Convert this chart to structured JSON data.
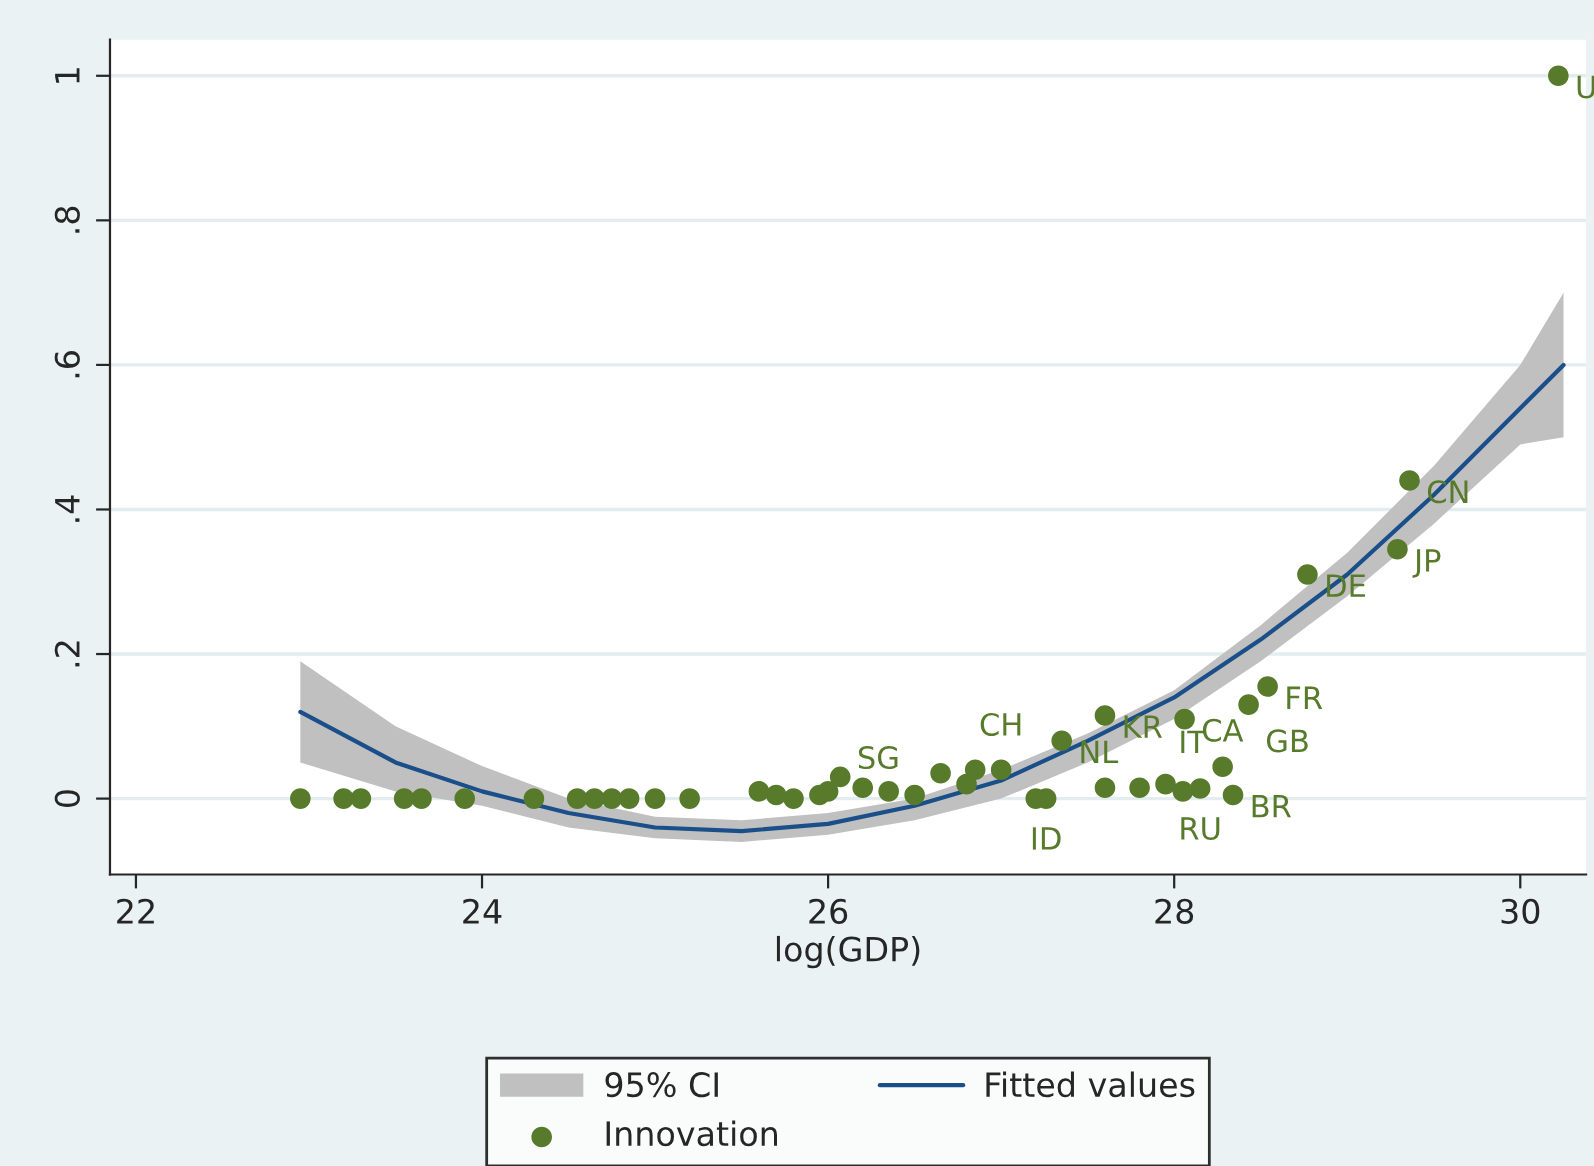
{
  "chart_data": {
    "type": "scatter",
    "xlabel": "log(GDP)",
    "xlim": [
      21.85,
      30.38
    ],
    "ylim": [
      -0.105,
      1.05
    ],
    "xticks": [
      22,
      24,
      26,
      28,
      30
    ],
    "yticks": [
      {
        "value": 0,
        "label": "0"
      },
      {
        "value": 0.2,
        "label": ".2"
      },
      {
        "value": 0.4,
        "label": ".4"
      },
      {
        "value": 0.6,
        "label": ".6"
      },
      {
        "value": 0.8,
        "label": ".8"
      },
      {
        "value": 1,
        "label": "1"
      }
    ],
    "grid": "y",
    "legend": "bottom",
    "series": [
      {
        "name": "Fitted values",
        "type": "line",
        "color": "#1a4f8a",
        "x": [
          22.95,
          23.5,
          24,
          24.5,
          25,
          25.5,
          26,
          26.5,
          27,
          27.5,
          28,
          28.5,
          29,
          29.5,
          30,
          30.25
        ],
        "values": [
          0.12,
          0.05,
          0.01,
          -0.02,
          -0.04,
          -0.045,
          -0.035,
          -0.01,
          0.025,
          0.08,
          0.14,
          0.22,
          0.31,
          0.42,
          0.54,
          0.6
        ],
        "lower": [
          0.05,
          0.01,
          -0.01,
          -0.04,
          -0.055,
          -0.06,
          -0.05,
          -0.03,
          0.0,
          0.05,
          0.11,
          0.19,
          0.28,
          0.38,
          0.49,
          0.5
        ],
        "upper": [
          0.19,
          0.1,
          0.045,
          0.0,
          -0.025,
          -0.03,
          -0.02,
          0.0,
          0.04,
          0.09,
          0.15,
          0.24,
          0.34,
          0.46,
          0.6,
          0.7
        ]
      },
      {
        "name": "Innovation",
        "type": "scatter",
        "marker": "circle",
        "color": "#577a2b",
        "x": [
          30.22,
          29.36,
          29.29,
          28.77,
          28.54,
          28.43,
          28.06,
          27.6,
          27.35,
          28.28,
          28.34,
          28.15,
          28.05,
          27.95,
          27.8,
          27.6,
          27.26,
          27.2,
          27.0,
          26.85,
          26.8,
          26.65,
          26.5,
          26.35,
          26.2,
          26.07,
          26.0,
          25.95,
          25.8,
          25.7,
          25.6,
          25.2,
          25.0,
          24.85,
          24.75,
          24.65,
          24.55,
          24.3,
          23.9,
          23.65,
          23.55,
          23.3,
          23.2,
          22.95
        ],
        "values": [
          1.0,
          0.44,
          0.345,
          0.31,
          0.155,
          0.13,
          0.11,
          0.115,
          0.08,
          0.044,
          0.005,
          0.014,
          0.01,
          0.02,
          0.015,
          0.015,
          0.0,
          0.0,
          0.04,
          0.04,
          0.02,
          0.035,
          0.005,
          0.01,
          0.015,
          0.03,
          0.01,
          0.005,
          0.0,
          0.005,
          0.01,
          0.0,
          0.0,
          0.0,
          0.0,
          0.0,
          0.0,
          0.0,
          0.0,
          0.0,
          0.0,
          0.0,
          0.0,
          0.0
        ]
      }
    ],
    "annotations": [
      "95% CI",
      {
        "text": "U",
        "x": 30.22,
        "y": 1.0
      },
      {
        "text": "CN",
        "x": 29.36,
        "y": 0.44
      },
      {
        "text": "JP",
        "x": 29.29,
        "y": 0.345
      },
      {
        "text": "DE",
        "x": 28.77,
        "y": 0.31
      },
      {
        "text": "FR",
        "x": 28.54,
        "y": 0.155
      },
      {
        "text": "GB",
        "x": 28.43,
        "y": 0.13
      },
      {
        "text": "CA",
        "x": 28.06,
        "y": 0.11
      },
      {
        "text": "KR",
        "x": 27.6,
        "y": 0.115
      },
      {
        "text": "NL",
        "x": 27.35,
        "y": 0.08
      },
      {
        "text": "IT",
        "x": 28.28,
        "y": 0.044
      },
      {
        "text": "BR",
        "x": 28.34,
        "y": 0.005
      },
      {
        "text": "RU",
        "x": 28.15,
        "y": 0.014
      },
      {
        "text": "SG",
        "x": 26.07,
        "y": 0.03
      },
      {
        "text": "CH",
        "x": 27.0,
        "y": 0.04
      },
      {
        "text": "ID",
        "x": 27.26,
        "y": 0.0
      }
    ]
  }
}
